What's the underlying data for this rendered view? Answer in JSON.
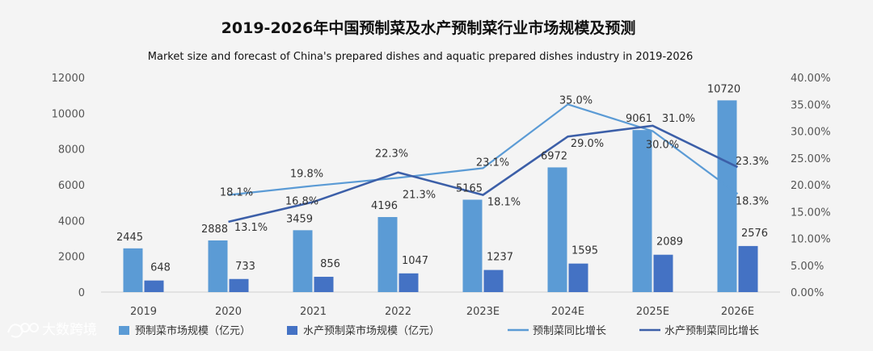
{
  "chart_data": {
    "type": "bar",
    "title": "2019-2026年中国预制菜及水产预制菜行业市场规模及预测",
    "subtitle": "Market size and forecast of China's prepared dishes and aquatic prepared dishes industry in 2019-2026",
    "categories": [
      "2019",
      "2020",
      "2021",
      "2022",
      "2023E",
      "2024E",
      "2025E",
      "2026E"
    ],
    "y_left": {
      "ticks": [
        "0",
        "2000",
        "4000",
        "6000",
        "8000",
        "10000",
        "12000"
      ],
      "range": [
        0,
        12000
      ]
    },
    "y_right": {
      "ticks": [
        "0.00%",
        "5.00%",
        "10.00%",
        "15.00%",
        "20.00%",
        "25.00%",
        "30.00%",
        "35.00%",
        "40.00%"
      ],
      "range": [
        0,
        40
      ]
    },
    "series": [
      {
        "name": "预制菜市场规模（亿元）",
        "kind": "bar",
        "axis": "left",
        "color": "#5b9bd5",
        "values": [
          2445,
          2888,
          3459,
          4196,
          5165,
          6972,
          9061,
          10720
        ],
        "labels": [
          "2445",
          "2888",
          "3459",
          "4196",
          "5165",
          "6972",
          "9061",
          "10720"
        ]
      },
      {
        "name": "水产预制菜市场规模（亿元）",
        "kind": "bar",
        "axis": "left",
        "color": "#4472c4",
        "values": [
          648,
          733,
          856,
          1047,
          1237,
          1595,
          2089,
          2576
        ],
        "labels": [
          "648",
          "733",
          "856",
          "1047",
          "1237",
          "1595",
          "2089",
          "2576"
        ]
      },
      {
        "name": "预制菜同比增长",
        "kind": "line",
        "axis": "right",
        "color": "#5b9bd5",
        "values": [
          null,
          18.1,
          19.8,
          21.3,
          23.1,
          35.0,
          30.0,
          18.3
        ],
        "labels": [
          "",
          "18.1%",
          "19.8%",
          "21.3%",
          "23.1%",
          "35.0%",
          "30.0%",
          "18.3%"
        ]
      },
      {
        "name": "水产预制菜同比增长",
        "kind": "line",
        "axis": "right",
        "color": "#3c5fa8",
        "values": [
          null,
          13.1,
          16.8,
          22.3,
          18.1,
          29.0,
          31.0,
          23.3
        ],
        "labels": [
          "",
          "13.1%",
          "16.8%",
          "22.3%",
          "18.1%",
          "29.0%",
          "31.0%",
          "23.3%"
        ]
      }
    ],
    "legend_position": "bottom"
  },
  "watermark": "大数跨境"
}
